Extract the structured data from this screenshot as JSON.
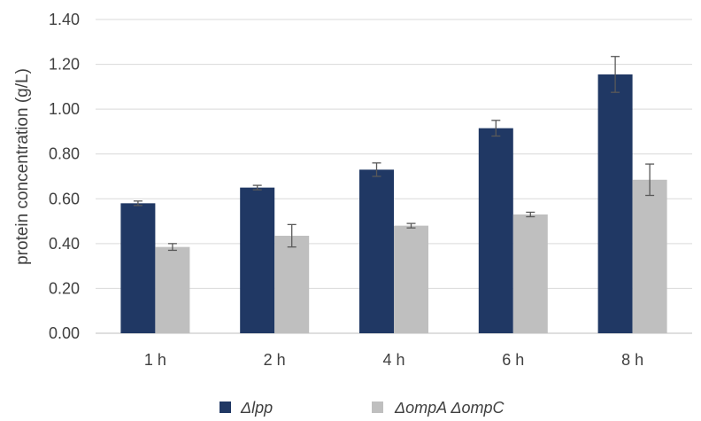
{
  "chart_data": {
    "type": "bar",
    "title": "",
    "xlabel": "",
    "ylabel": "protein concentration (g/L)",
    "categories": [
      "1 h",
      "2 h",
      "4 h",
      "6 h",
      "8 h"
    ],
    "ylim": [
      0,
      1.4
    ],
    "yticks": [
      "0.00",
      "0.20",
      "0.40",
      "0.60",
      "0.80",
      "1.00",
      "1.20",
      "1.40"
    ],
    "grid": true,
    "legend_position": "bottom",
    "series": [
      {
        "name": "Δlpp",
        "color": "#203864",
        "values": [
          0.58,
          0.65,
          0.73,
          0.915,
          1.155
        ],
        "errors": [
          0.01,
          0.01,
          0.03,
          0.035,
          0.08
        ]
      },
      {
        "name": "ΔompA ΔompC",
        "color": "#bfbfbf",
        "values": [
          0.385,
          0.435,
          0.48,
          0.53,
          0.685
        ],
        "errors": [
          0.015,
          0.05,
          0.01,
          0.01,
          0.07
        ]
      }
    ]
  }
}
